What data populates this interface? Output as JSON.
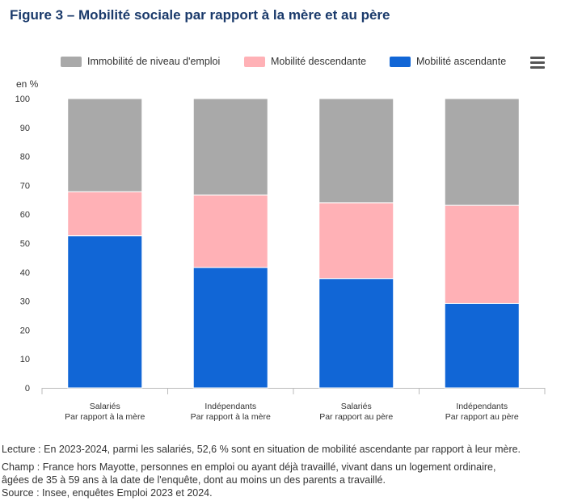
{
  "header": {
    "title": "Figure 3 – Mobilité sociale par rapport à la mère et au père",
    "menu_icon": "hamburger-menu-icon"
  },
  "colors": {
    "immobilite": "#a9a9a9",
    "descendante": "#ffb1b6",
    "ascendante": "#1166d6",
    "title": "#1a3a6b"
  },
  "chart_data": {
    "type": "bar",
    "stacked": true,
    "categories": [
      [
        "Salariés",
        "Par rapport à la mère"
      ],
      [
        "Indépendants",
        "Par rapport à la mère"
      ],
      [
        "Salariés",
        "Par rapport au père"
      ],
      [
        "Indépendants",
        "Par rapport au père"
      ]
    ],
    "series": [
      {
        "name": "Mobilité ascendante",
        "color": "#1166d6",
        "values": [
          52.6,
          41.6,
          37.8,
          29.2
        ]
      },
      {
        "name": "Mobilité descendante",
        "color": "#ffb1b6",
        "values": [
          15.2,
          25.1,
          26.2,
          33.9
        ]
      },
      {
        "name": "Immobilité de niveau d'emploi",
        "color": "#a9a9a9",
        "values": [
          32.2,
          33.3,
          36.0,
          36.9
        ]
      }
    ],
    "legend_order": [
      "Immobilité de niveau d'emploi",
      "Mobilité descendante",
      "Mobilité ascendante"
    ],
    "legend_position": "top",
    "ylabel": "en %",
    "ylim": [
      0,
      100
    ],
    "yticks": [
      0,
      10,
      20,
      30,
      40,
      50,
      60,
      70,
      80,
      90,
      100
    ],
    "grid": false
  },
  "notes": {
    "lecture": "Lecture : En 2023-2024, parmi les salariés, 52,6 % sont en situation de mobilité ascendante par rapport à leur mère.",
    "champ_line1": "Champ : France hors Mayotte, personnes en emploi ou ayant déjà travaillé, vivant dans un logement ordinaire,",
    "champ_line2": "âgées de 35 à 59 ans à la date de l'enquête, dont au moins un des parents a travaillé.",
    "source": "Source : Insee, enquêtes Emploi 2023 et 2024."
  }
}
